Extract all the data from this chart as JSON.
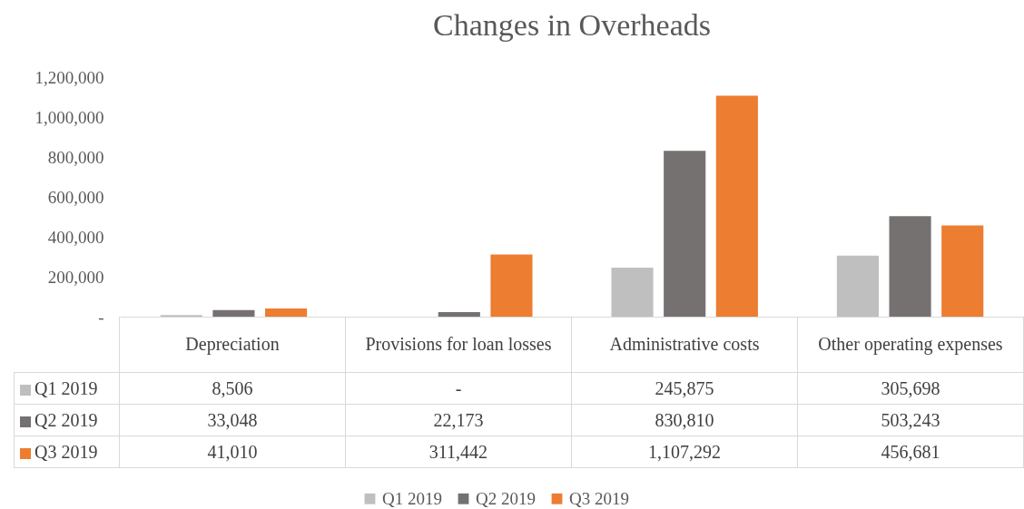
{
  "chart_data": {
    "type": "bar",
    "title": "Changes in Overheads",
    "categories": [
      "Depreciation",
      "Provisions for loan losses",
      "Administrative costs",
      "Other operating expenses"
    ],
    "series": [
      {
        "name": "Q1 2019",
        "color": "#bfbfbf",
        "values": [
          8506,
          0,
          245875,
          305698
        ],
        "value_labels": [
          "8,506",
          "-",
          "245,875",
          "305,698"
        ]
      },
      {
        "name": "Q2 2019",
        "color": "#767171",
        "values": [
          33048,
          22173,
          830810,
          503243
        ],
        "value_labels": [
          "33,048",
          "22,173",
          "830,810",
          "503,243"
        ]
      },
      {
        "name": "Q3 2019",
        "color": "#ed7d31",
        "values": [
          41010,
          311442,
          1107292,
          456681
        ],
        "value_labels": [
          "41,010",
          "311,442",
          "1,107,292",
          "456,681"
        ]
      }
    ],
    "ylim": [
      0,
      1200000
    ],
    "yticks": [
      {
        "value": 0,
        "label": "-"
      },
      {
        "value": 200000,
        "label": "200,000"
      },
      {
        "value": 400000,
        "label": "400,000"
      },
      {
        "value": 600000,
        "label": "600,000"
      },
      {
        "value": 800000,
        "label": "800,000"
      },
      {
        "value": 1000000,
        "label": "1,000,000"
      },
      {
        "value": 1200000,
        "label": "1,200,000"
      }
    ],
    "grid": false,
    "legend": "bottom"
  }
}
